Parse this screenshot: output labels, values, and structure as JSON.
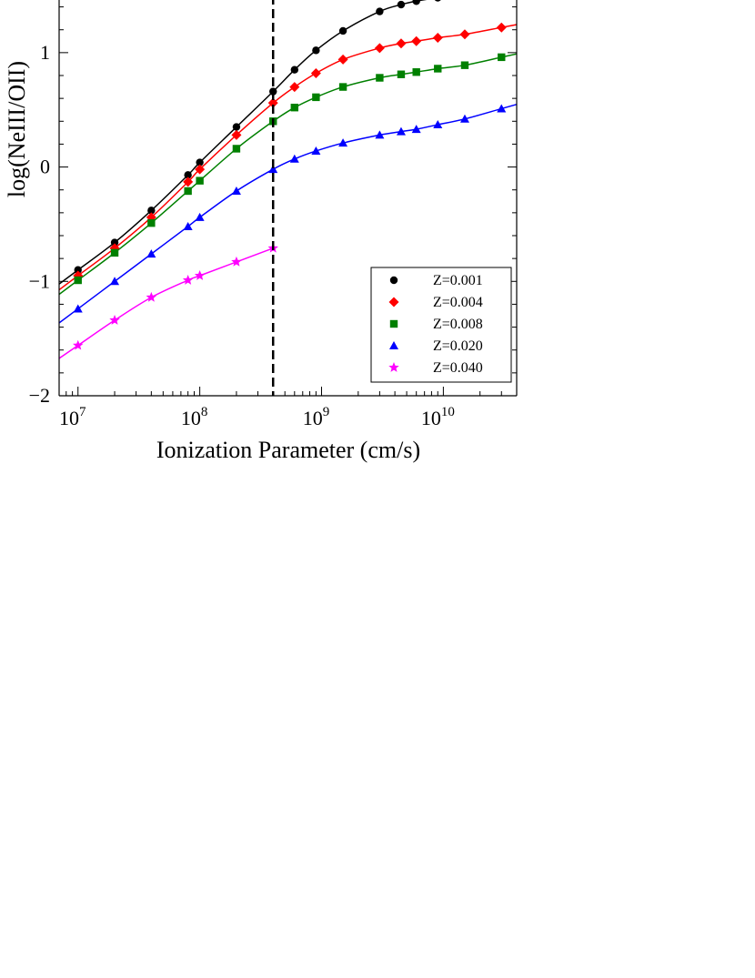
{
  "chart_data": {
    "type": "line",
    "title": "",
    "xlabel": "Ionization Parameter (cm/s)",
    "ylabel": "log(NeIII/OII)",
    "xscale": "log",
    "xlim": [
      7000000,
      40000000000
    ],
    "ylim": [
      -2,
      1.5
    ],
    "x_ticks": [
      {
        "value": 10000000,
        "base": "10",
        "exp": "7"
      },
      {
        "value": 100000000,
        "base": "10",
        "exp": "8"
      },
      {
        "value": 1000000000,
        "base": "10",
        "exp": "9"
      },
      {
        "value": 10000000000,
        "base": "10",
        "exp": "10"
      }
    ],
    "y_ticks": [
      {
        "value": -2,
        "label": "−2"
      },
      {
        "value": -1,
        "label": "−1"
      },
      {
        "value": 0,
        "label": "0"
      },
      {
        "value": 1,
        "label": "1"
      }
    ],
    "vline": {
      "x": 400000000,
      "style": "dashed",
      "color": "#000000"
    },
    "legend_position": "lower-right",
    "series": [
      {
        "name": "Z=0.001",
        "color": "#000000",
        "marker": "circle",
        "x": [
          10000000,
          20000000,
          40000000,
          80000000,
          100000000,
          200000000,
          400000000,
          600000000,
          900000000,
          1500000000,
          3000000000,
          4500000000,
          6000000000,
          9000000000,
          15000000000
        ],
        "y": [
          -0.9,
          -0.66,
          -0.38,
          -0.07,
          0.04,
          0.35,
          0.66,
          0.85,
          1.02,
          1.19,
          1.36,
          1.42,
          1.45,
          1.48,
          1.5
        ]
      },
      {
        "name": "Z=0.004",
        "color": "#ff0000",
        "marker": "diamond",
        "x": [
          10000000,
          20000000,
          40000000,
          80000000,
          100000000,
          200000000,
          400000000,
          600000000,
          900000000,
          1500000000,
          3000000000,
          4500000000,
          6000000000,
          9000000000,
          15000000000,
          30000000000
        ],
        "y": [
          -0.95,
          -0.71,
          -0.44,
          -0.13,
          -0.02,
          0.28,
          0.56,
          0.7,
          0.82,
          0.94,
          1.04,
          1.08,
          1.1,
          1.13,
          1.16,
          1.22
        ]
      },
      {
        "name": "Z=0.008",
        "color": "#008000",
        "marker": "square",
        "x": [
          10000000,
          20000000,
          40000000,
          80000000,
          100000000,
          200000000,
          400000000,
          600000000,
          900000000,
          1500000000,
          3000000000,
          4500000000,
          6000000000,
          9000000000,
          15000000000,
          30000000000
        ],
        "y": [
          -0.99,
          -0.75,
          -0.49,
          -0.21,
          -0.12,
          0.16,
          0.4,
          0.52,
          0.61,
          0.7,
          0.78,
          0.81,
          0.83,
          0.86,
          0.89,
          0.96
        ]
      },
      {
        "name": "Z=0.020",
        "color": "#0000ff",
        "marker": "triangle",
        "x": [
          10000000,
          20000000,
          40000000,
          80000000,
          100000000,
          200000000,
          400000000,
          600000000,
          900000000,
          1500000000,
          3000000000,
          4500000000,
          6000000000,
          9000000000,
          15000000000,
          30000000000
        ],
        "y": [
          -1.24,
          -1.0,
          -0.76,
          -0.52,
          -0.44,
          -0.21,
          -0.02,
          0.07,
          0.14,
          0.21,
          0.28,
          0.31,
          0.33,
          0.37,
          0.42,
          0.51
        ]
      },
      {
        "name": "Z=0.040",
        "color": "#ff00ff",
        "marker": "star",
        "x": [
          10000000,
          20000000,
          40000000,
          80000000,
          100000000,
          200000000,
          400000000
        ],
        "y": [
          -1.56,
          -1.34,
          -1.14,
          -0.99,
          -0.95,
          -0.83,
          -0.71
        ]
      }
    ]
  }
}
